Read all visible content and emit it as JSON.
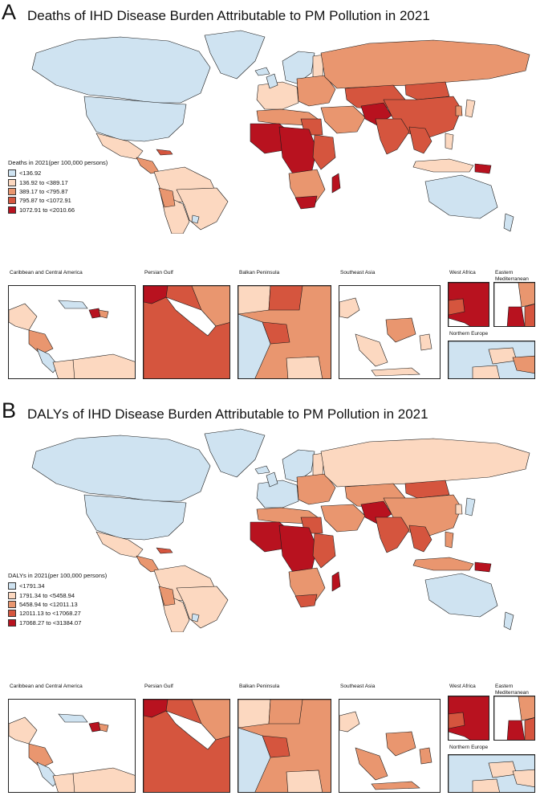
{
  "colors": {
    "c1": "#cfe3f1",
    "c2": "#fcd8c0",
    "c3": "#e9966f",
    "c4": "#d5553e",
    "c5": "#b8121f",
    "ocean": "#ffffff",
    "border": "#1a1a1a"
  },
  "panel_a": {
    "letter": "A",
    "title": "Deaths of IHD Disease Burden Attributable to PM Pollution in 2021",
    "legend": {
      "title": "Deaths in 2021(per 100,000 persons)",
      "items": [
        {
          "label": "<136.92",
          "class": "c1"
        },
        {
          "label": "136.92 to <389.17",
          "class": "c2"
        },
        {
          "label": "389.17 to <795.87",
          "class": "c3"
        },
        {
          "label": "795.87 to <1072.91",
          "class": "c4"
        },
        {
          "label": "1072.91 to <2010.66",
          "class": "c5"
        }
      ]
    },
    "insets": {
      "caribbean": "Caribbean and Central America",
      "persian_gulf": "Persian Gulf",
      "balkan": "Balkan Peninsula",
      "southeast_asia": "Southeast Asia",
      "west_africa": "West Africa",
      "eastern_med": "Eastern Mediterranean",
      "northern_europe": "Northern Europe"
    }
  },
  "panel_b": {
    "letter": "B",
    "title": "DALYs of IHD Disease Burden Attributable to PM Pollution in 2021",
    "legend": {
      "title": "DALYs in 2021(per 100,000 persons)",
      "items": [
        {
          "label": "<1791.34",
          "class": "c1"
        },
        {
          "label": "1791.34 to <5458.94",
          "class": "c2"
        },
        {
          "label": "5458.94 to <12011.13",
          "class": "c3"
        },
        {
          "label": "12011.13 to <17068.27",
          "class": "c4"
        },
        {
          "label": "17068.27 to <31384.07",
          "class": "c5"
        }
      ]
    },
    "insets": {
      "caribbean": "Caribbean and Central America",
      "persian_gulf": "Persian Gulf",
      "balkan": "Balkan Peninsula",
      "southeast_asia": "Southeast Asia",
      "west_africa": "West Africa",
      "eastern_med": "Eastern Mediterranean",
      "northern_europe": "Northern Europe"
    }
  }
}
